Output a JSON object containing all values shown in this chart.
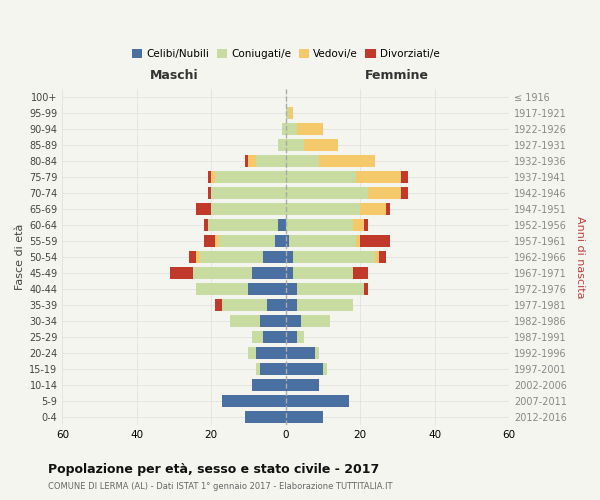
{
  "age_groups": [
    "0-4",
    "5-9",
    "10-14",
    "15-19",
    "20-24",
    "25-29",
    "30-34",
    "35-39",
    "40-44",
    "45-49",
    "50-54",
    "55-59",
    "60-64",
    "65-69",
    "70-74",
    "75-79",
    "80-84",
    "85-89",
    "90-94",
    "95-99",
    "100+"
  ],
  "birth_years": [
    "2012-2016",
    "2007-2011",
    "2002-2006",
    "1997-2001",
    "1992-1996",
    "1987-1991",
    "1982-1986",
    "1977-1981",
    "1972-1976",
    "1967-1971",
    "1962-1966",
    "1957-1961",
    "1952-1956",
    "1947-1951",
    "1942-1946",
    "1937-1941",
    "1932-1936",
    "1927-1931",
    "1922-1926",
    "1917-1921",
    "≤ 1916"
  ],
  "males": {
    "celibi": [
      11,
      17,
      9,
      7,
      8,
      6,
      7,
      5,
      10,
      9,
      6,
      3,
      2,
      0,
      0,
      0,
      0,
      0,
      0,
      0,
      0
    ],
    "coniugati": [
      0,
      0,
      0,
      1,
      2,
      3,
      8,
      12,
      14,
      16,
      17,
      15,
      19,
      20,
      20,
      19,
      8,
      2,
      1,
      0,
      0
    ],
    "vedovi": [
      0,
      0,
      0,
      0,
      0,
      0,
      0,
      0,
      0,
      0,
      1,
      1,
      0,
      0,
      0,
      1,
      2,
      0,
      0,
      0,
      0
    ],
    "divorziati": [
      0,
      0,
      0,
      0,
      0,
      0,
      0,
      2,
      0,
      6,
      2,
      3,
      1,
      4,
      1,
      1,
      1,
      0,
      0,
      0,
      0
    ]
  },
  "females": {
    "nubili": [
      10,
      17,
      9,
      10,
      8,
      3,
      4,
      3,
      3,
      2,
      2,
      1,
      0,
      0,
      0,
      0,
      0,
      0,
      0,
      0,
      0
    ],
    "coniugate": [
      0,
      0,
      0,
      1,
      1,
      2,
      8,
      15,
      18,
      16,
      22,
      18,
      18,
      20,
      22,
      19,
      9,
      5,
      3,
      1,
      0
    ],
    "vedove": [
      0,
      0,
      0,
      0,
      0,
      0,
      0,
      0,
      0,
      0,
      1,
      1,
      3,
      7,
      9,
      12,
      15,
      9,
      7,
      1,
      0
    ],
    "divorziate": [
      0,
      0,
      0,
      0,
      0,
      0,
      0,
      0,
      1,
      4,
      2,
      8,
      1,
      1,
      2,
      2,
      0,
      0,
      0,
      0,
      0
    ]
  },
  "colors": {
    "celibi_nubili": "#4a6fa1",
    "coniugati_e": "#c8dba0",
    "vedovi_e": "#f5c96a",
    "divorziati_e": "#c0392b"
  },
  "title": "Popolazione per età, sesso e stato civile - 2017",
  "subtitle": "COMUNE DI LERMA (AL) - Dati ISTAT 1° gennaio 2017 - Elaborazione TUTTITALIA.IT",
  "xlabel_left": "Maschi",
  "xlabel_right": "Femmine",
  "ylabel_left": "Fasce di età",
  "ylabel_right": "Anni di nascita",
  "xlim": 60,
  "legend_labels": [
    "Celibi/Nubili",
    "Coniugati/e",
    "Vedovi/e",
    "Divorziati/e"
  ],
  "background_color": "#f5f5f0",
  "plot_bg_color": "#f5f5f0",
  "grid_color": "#dddddd"
}
